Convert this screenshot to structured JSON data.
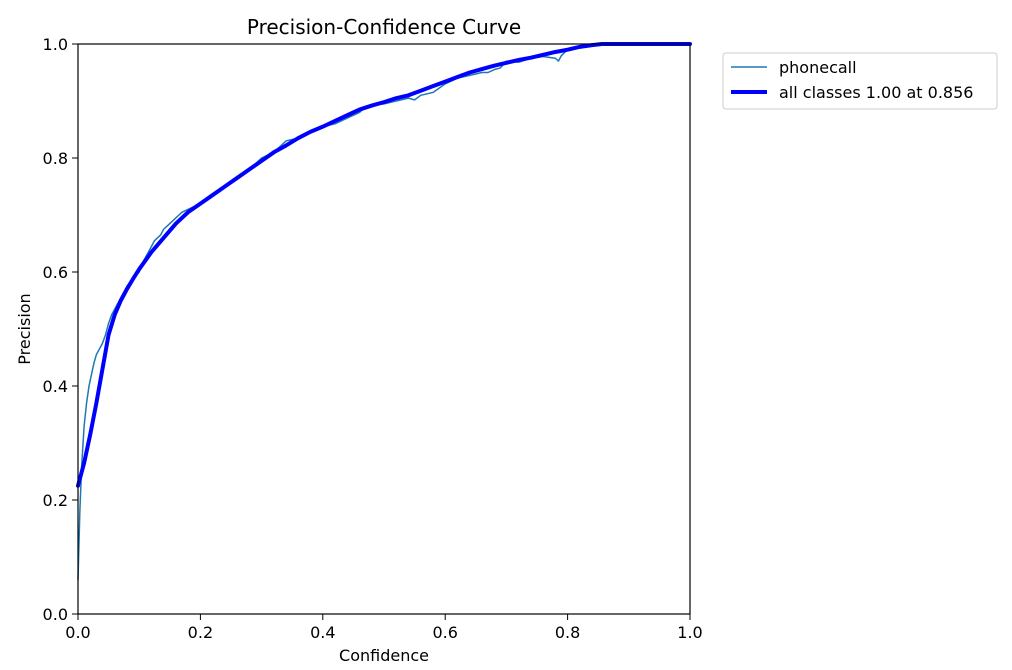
{
  "chart_data": {
    "type": "line",
    "title": "Precision-Confidence Curve",
    "xlabel": "Confidence",
    "ylabel": "Precision",
    "xlim": [
      0.0,
      1.0
    ],
    "ylim": [
      0.0,
      1.0
    ],
    "xticks": [
      "0.0",
      "0.2",
      "0.4",
      "0.6",
      "0.8",
      "1.0"
    ],
    "yticks": [
      "0.0",
      "0.2",
      "0.4",
      "0.6",
      "0.8",
      "1.0"
    ],
    "grid": false,
    "legend_position": "outside-top-right",
    "series": [
      {
        "name": "phonecall",
        "color": "#1f77b4",
        "style": "thin",
        "x": [
          0.0,
          0.003,
          0.006,
          0.01,
          0.014,
          0.018,
          0.022,
          0.026,
          0.03,
          0.035,
          0.04,
          0.045,
          0.05,
          0.055,
          0.06,
          0.065,
          0.07,
          0.075,
          0.08,
          0.085,
          0.09,
          0.095,
          0.1,
          0.105,
          0.11,
          0.115,
          0.12,
          0.125,
          0.13,
          0.135,
          0.14,
          0.145,
          0.15,
          0.155,
          0.16,
          0.165,
          0.17,
          0.18,
          0.19,
          0.2,
          0.22,
          0.24,
          0.26,
          0.28,
          0.3,
          0.32,
          0.34,
          0.36,
          0.38,
          0.4,
          0.42,
          0.44,
          0.46,
          0.47,
          0.48,
          0.5,
          0.52,
          0.54,
          0.55,
          0.56,
          0.58,
          0.6,
          0.62,
          0.64,
          0.66,
          0.67,
          0.68,
          0.69,
          0.7,
          0.72,
          0.74,
          0.76,
          0.78,
          0.785,
          0.79,
          0.8,
          0.82,
          0.84,
          0.86,
          0.88,
          0.9,
          0.95,
          1.0
        ],
        "y": [
          0.06,
          0.18,
          0.26,
          0.33,
          0.37,
          0.4,
          0.42,
          0.44,
          0.455,
          0.465,
          0.475,
          0.49,
          0.51,
          0.525,
          0.535,
          0.545,
          0.555,
          0.565,
          0.575,
          0.582,
          0.59,
          0.595,
          0.6,
          0.615,
          0.625,
          0.635,
          0.645,
          0.655,
          0.66,
          0.665,
          0.675,
          0.68,
          0.685,
          0.69,
          0.695,
          0.7,
          0.705,
          0.71,
          0.715,
          0.72,
          0.735,
          0.75,
          0.765,
          0.78,
          0.8,
          0.81,
          0.83,
          0.835,
          0.845,
          0.855,
          0.86,
          0.87,
          0.88,
          0.89,
          0.893,
          0.895,
          0.9,
          0.905,
          0.902,
          0.91,
          0.915,
          0.93,
          0.94,
          0.945,
          0.95,
          0.95,
          0.955,
          0.958,
          0.97,
          0.968,
          0.975,
          0.978,
          0.975,
          0.97,
          0.98,
          0.99,
          0.995,
          1.0,
          1.0,
          1.0,
          1.0,
          1.0,
          1.0
        ]
      },
      {
        "name": "all classes 1.00 at 0.856",
        "color": "#0000ff",
        "style": "thick",
        "x": [
          0.0,
          0.01,
          0.02,
          0.03,
          0.04,
          0.05,
          0.06,
          0.07,
          0.08,
          0.09,
          0.1,
          0.12,
          0.14,
          0.16,
          0.18,
          0.2,
          0.22,
          0.24,
          0.26,
          0.28,
          0.3,
          0.32,
          0.34,
          0.36,
          0.38,
          0.4,
          0.42,
          0.44,
          0.46,
          0.48,
          0.5,
          0.52,
          0.54,
          0.56,
          0.58,
          0.6,
          0.62,
          0.64,
          0.66,
          0.68,
          0.7,
          0.72,
          0.74,
          0.76,
          0.78,
          0.8,
          0.82,
          0.84,
          0.856,
          0.9,
          0.95,
          1.0
        ],
        "y": [
          0.225,
          0.265,
          0.315,
          0.37,
          0.43,
          0.49,
          0.525,
          0.55,
          0.57,
          0.588,
          0.605,
          0.635,
          0.66,
          0.685,
          0.705,
          0.72,
          0.735,
          0.75,
          0.765,
          0.78,
          0.795,
          0.81,
          0.822,
          0.835,
          0.846,
          0.855,
          0.865,
          0.875,
          0.885,
          0.892,
          0.898,
          0.905,
          0.91,
          0.918,
          0.926,
          0.934,
          0.942,
          0.95,
          0.956,
          0.962,
          0.967,
          0.972,
          0.976,
          0.981,
          0.986,
          0.99,
          0.995,
          0.998,
          1.0,
          1.0,
          1.0,
          1.0
        ]
      }
    ]
  }
}
